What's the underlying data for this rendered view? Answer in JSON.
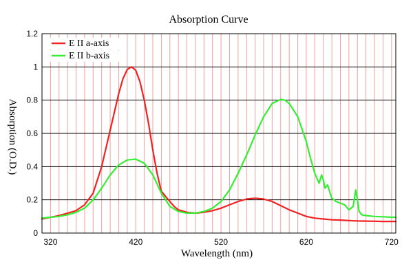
{
  "chart_data": {
    "type": "line",
    "title": "Absorption Curve",
    "xlabel": "Wavelength (nm)",
    "ylabel": "Absorption (O.D.)",
    "xlim": [
      310,
      725
    ],
    "ylim": [
      0,
      1.2
    ],
    "xticks": [
      320,
      420,
      520,
      620,
      720
    ],
    "yticks": [
      0,
      0.2,
      0.4,
      0.6,
      0.8,
      1,
      1.2
    ],
    "xtick_labels": [
      "320",
      "420",
      "520",
      "620",
      "720"
    ],
    "ytick_labels": [
      "0",
      "0.2",
      "0.4",
      "0.6",
      "0.8",
      "1",
      "1.2"
    ],
    "grid": "major horizontal lines and minor vertical lines every 10 nm",
    "legend_position": "top-left",
    "series": [
      {
        "name": "E II a-axis",
        "color": "#ee2222",
        "x": [
          310,
          315,
          320,
          325,
          330,
          340,
          350,
          360,
          370,
          380,
          390,
          400,
          405,
          410,
          415,
          420,
          425,
          430,
          435,
          440,
          445,
          450,
          452,
          455,
          460,
          465,
          470,
          480,
          490,
          500,
          510,
          520,
          530,
          540,
          550,
          560,
          570,
          580,
          590,
          600,
          610,
          620,
          630,
          640,
          650,
          660,
          670,
          680,
          690,
          700,
          710,
          720,
          725
        ],
        "y": [
          0.085,
          0.09,
          0.095,
          0.1,
          0.105,
          0.12,
          0.135,
          0.17,
          0.24,
          0.4,
          0.62,
          0.84,
          0.93,
          0.985,
          1.0,
          0.98,
          0.91,
          0.8,
          0.66,
          0.5,
          0.36,
          0.25,
          0.24,
          0.22,
          0.19,
          0.16,
          0.14,
          0.125,
          0.12,
          0.125,
          0.135,
          0.15,
          0.17,
          0.19,
          0.205,
          0.21,
          0.205,
          0.19,
          0.165,
          0.14,
          0.12,
          0.1,
          0.09,
          0.085,
          0.08,
          0.078,
          0.075,
          0.073,
          0.072,
          0.071,
          0.07,
          0.07,
          0.07
        ]
      },
      {
        "name": "E II b-axis",
        "color": "#33ee33",
        "x": [
          310,
          320,
          330,
          340,
          350,
          360,
          370,
          380,
          390,
          400,
          410,
          420,
          430,
          440,
          450,
          460,
          470,
          480,
          490,
          500,
          510,
          520,
          530,
          540,
          550,
          560,
          570,
          580,
          590,
          595,
          600,
          610,
          620,
          625,
          630,
          635,
          638,
          640,
          642,
          645,
          648,
          650,
          655,
          660,
          665,
          670,
          675,
          678,
          680,
          682,
          685,
          690,
          700,
          710,
          720,
          725
        ],
        "y": [
          0.09,
          0.095,
          0.1,
          0.11,
          0.125,
          0.15,
          0.2,
          0.27,
          0.35,
          0.41,
          0.44,
          0.445,
          0.42,
          0.35,
          0.24,
          0.16,
          0.13,
          0.12,
          0.12,
          0.13,
          0.15,
          0.19,
          0.26,
          0.36,
          0.47,
          0.59,
          0.7,
          0.78,
          0.805,
          0.8,
          0.78,
          0.7,
          0.55,
          0.45,
          0.36,
          0.3,
          0.35,
          0.32,
          0.27,
          0.29,
          0.24,
          0.21,
          0.19,
          0.18,
          0.17,
          0.14,
          0.16,
          0.26,
          0.2,
          0.13,
          0.11,
          0.105,
          0.1,
          0.098,
          0.095,
          0.095
        ]
      }
    ]
  }
}
